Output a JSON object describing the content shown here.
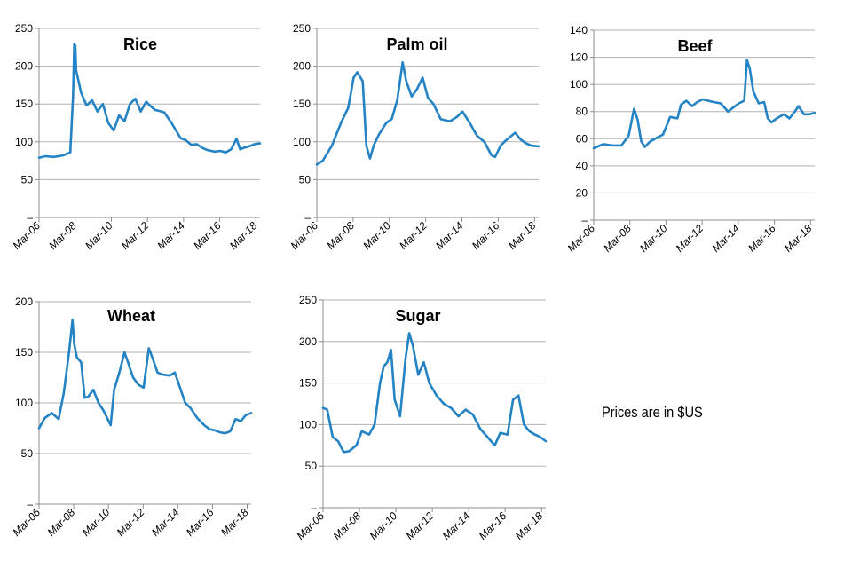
{
  "note": "Prices are in $US",
  "colors": {
    "line": "#2383c4",
    "grid": "#b3b3b3",
    "axis": "#8c8c8c",
    "text": "#000000"
  },
  "chart_data": [
    {
      "type": "line",
      "title": "Rice",
      "x_tick_labels": [
        "Mar-06",
        "Mar-08",
        "Mar-10",
        "Mar-12",
        "Mar-14",
        "Mar-16",
        "Mar-18"
      ],
      "xlim": [
        2006.17,
        2018.4
      ],
      "ylim": [
        0,
        250
      ],
      "y_ticks": [
        0,
        50,
        100,
        150,
        200,
        250
      ],
      "y_tick_labels": [
        "–",
        "50",
        "100",
        "150",
        "200",
        "250"
      ],
      "x": [
        2006.17,
        2006.5,
        2007.0,
        2007.5,
        2007.9,
        2008.05,
        2008.12,
        2008.18,
        2008.22,
        2008.3,
        2008.5,
        2008.8,
        2009.1,
        2009.4,
        2009.7,
        2010.0,
        2010.3,
        2010.6,
        2010.9,
        2011.2,
        2011.5,
        2011.8,
        2012.1,
        2012.3,
        2012.6,
        2012.8,
        2013.1,
        2013.5,
        2014.0,
        2014.3,
        2014.6,
        2014.9,
        2015.2,
        2015.5,
        2015.9,
        2016.2,
        2016.5,
        2016.8,
        2017.1,
        2017.3,
        2017.5,
        2017.9,
        2018.1,
        2018.4
      ],
      "y": [
        79,
        81,
        80,
        82,
        86,
        160,
        229,
        227,
        195,
        186,
        165,
        148,
        155,
        140,
        150,
        125,
        115,
        135,
        127,
        150,
        157,
        140,
        153,
        148,
        142,
        141,
        139,
        125,
        105,
        102,
        96,
        97,
        92,
        89,
        87,
        88,
        86,
        90,
        104,
        90,
        92,
        95,
        97,
        98
      ]
    },
    {
      "type": "line",
      "title": "Palm oil",
      "x_tick_labels": [
        "Mar-06",
        "Mar-08",
        "Mar-10",
        "Mar-12",
        "Mar-14",
        "Mar-16",
        "Mar-18"
      ],
      "xlim": [
        2006.17,
        2018.4
      ],
      "ylim": [
        0,
        250
      ],
      "y_ticks": [
        0,
        50,
        100,
        150,
        200,
        250
      ],
      "y_tick_labels": [
        "–",
        "50",
        "100",
        "150",
        "200",
        "250"
      ],
      "x": [
        2006.17,
        2006.5,
        2007.0,
        2007.5,
        2007.9,
        2008.2,
        2008.4,
        2008.7,
        2008.9,
        2009.1,
        2009.3,
        2009.6,
        2010.0,
        2010.3,
        2010.6,
        2010.9,
        2011.1,
        2011.4,
        2011.7,
        2012.0,
        2012.3,
        2012.6,
        2013.0,
        2013.5,
        2013.9,
        2014.2,
        2014.6,
        2015.0,
        2015.4,
        2015.8,
        2016.0,
        2016.3,
        2016.6,
        2016.9,
        2017.1,
        2017.4,
        2017.7,
        2018.0,
        2018.4
      ],
      "y": [
        70,
        75,
        95,
        125,
        145,
        185,
        192,
        180,
        95,
        78,
        95,
        110,
        125,
        130,
        155,
        205,
        180,
        160,
        170,
        185,
        158,
        150,
        130,
        127,
        133,
        140,
        125,
        108,
        100,
        82,
        80,
        95,
        102,
        108,
        112,
        103,
        98,
        95,
        94
      ]
    },
    {
      "type": "line",
      "title": "Beef",
      "x_tick_labels": [
        "Mar-06",
        "Mar-08",
        "Mar-10",
        "Mar-12",
        "Mar-14",
        "Mar-16",
        "Mar-18"
      ],
      "xlim": [
        2006.17,
        2018.4
      ],
      "ylim": [
        0,
        140
      ],
      "y_ticks": [
        0,
        20,
        40,
        60,
        80,
        100,
        120,
        140
      ],
      "y_tick_labels": [
        "–",
        "20",
        "40",
        "60",
        "80",
        "100",
        "120",
        "140"
      ],
      "x": [
        2006.17,
        2006.7,
        2007.2,
        2007.7,
        2008.1,
        2008.4,
        2008.6,
        2008.8,
        2009.0,
        2009.3,
        2009.7,
        2010.0,
        2010.4,
        2010.8,
        2011.0,
        2011.3,
        2011.6,
        2011.9,
        2012.2,
        2012.5,
        2012.8,
        2013.2,
        2013.6,
        2013.9,
        2014.2,
        2014.5,
        2014.65,
        2014.8,
        2015.0,
        2015.3,
        2015.6,
        2015.8,
        2016.0,
        2016.3,
        2016.7,
        2017.0,
        2017.3,
        2017.5,
        2017.8,
        2018.1,
        2018.4
      ],
      "y": [
        53,
        56,
        55,
        55,
        62,
        82,
        74,
        58,
        54,
        58,
        61,
        63,
        76,
        75,
        85,
        88,
        84,
        87,
        89,
        88,
        87,
        86,
        80,
        83,
        86,
        88,
        118,
        112,
        95,
        86,
        87,
        75,
        72,
        75,
        78,
        75,
        80,
        84,
        78,
        78,
        79
      ]
    },
    {
      "type": "line",
      "title": "Wheat",
      "x_tick_labels": [
        "Mar-06",
        "Mar-08",
        "Mar-10",
        "Mar-12",
        "Mar-14",
        "Mar-16",
        "Mar-18"
      ],
      "xlim": [
        2006.17,
        2018.4
      ],
      "ylim": [
        0,
        200
      ],
      "y_ticks": [
        0,
        50,
        100,
        150,
        200
      ],
      "y_tick_labels": [
        "–",
        "50",
        "100",
        "150",
        "200"
      ],
      "x": [
        2006.17,
        2006.5,
        2006.9,
        2007.3,
        2007.6,
        2007.9,
        2008.1,
        2008.2,
        2008.35,
        2008.6,
        2008.8,
        2009.0,
        2009.3,
        2009.6,
        2009.9,
        2010.3,
        2010.5,
        2010.8,
        2011.1,
        2011.3,
        2011.6,
        2011.9,
        2012.2,
        2012.5,
        2012.7,
        2013.0,
        2013.3,
        2013.7,
        2014.0,
        2014.3,
        2014.6,
        2014.9,
        2015.3,
        2015.7,
        2016.0,
        2016.3,
        2016.6,
        2016.9,
        2017.2,
        2017.5,
        2017.8,
        2018.1,
        2018.4
      ],
      "y": [
        75,
        85,
        90,
        84,
        110,
        150,
        182,
        158,
        145,
        140,
        105,
        106,
        113,
        100,
        92,
        78,
        113,
        130,
        150,
        140,
        125,
        118,
        115,
        154,
        145,
        130,
        128,
        127,
        130,
        115,
        100,
        95,
        85,
        78,
        74,
        73,
        71,
        70,
        72,
        84,
        82,
        88,
        90
      ]
    },
    {
      "type": "line",
      "title": "Sugar",
      "x_tick_labels": [
        "Mar-06",
        "Mar-08",
        "Mar-10",
        "Mar-12",
        "Mar-14",
        "Mar-16",
        "Mar-18"
      ],
      "xlim": [
        2006.17,
        2018.4
      ],
      "ylim": [
        0,
        250
      ],
      "y_ticks": [
        0,
        50,
        100,
        150,
        200,
        250
      ],
      "y_tick_labels": [
        "–",
        "50",
        "100",
        "150",
        "200",
        "250"
      ],
      "x": [
        2006.17,
        2006.4,
        2006.7,
        2007.0,
        2007.3,
        2007.6,
        2008.0,
        2008.3,
        2008.7,
        2009.0,
        2009.3,
        2009.5,
        2009.7,
        2009.9,
        2010.1,
        2010.4,
        2010.7,
        2010.9,
        2011.1,
        2011.4,
        2011.7,
        2012.0,
        2012.4,
        2012.8,
        2013.2,
        2013.6,
        2014.0,
        2014.4,
        2014.8,
        2015.2,
        2015.6,
        2015.9,
        2016.3,
        2016.6,
        2016.9,
        2017.2,
        2017.5,
        2017.8,
        2018.1,
        2018.4
      ],
      "y": [
        120,
        118,
        85,
        80,
        67,
        68,
        75,
        92,
        88,
        100,
        150,
        170,
        175,
        190,
        130,
        110,
        180,
        210,
        195,
        160,
        175,
        150,
        135,
        125,
        120,
        110,
        118,
        112,
        95,
        85,
        75,
        90,
        88,
        130,
        135,
        100,
        92,
        88,
        85,
        80
      ]
    }
  ]
}
